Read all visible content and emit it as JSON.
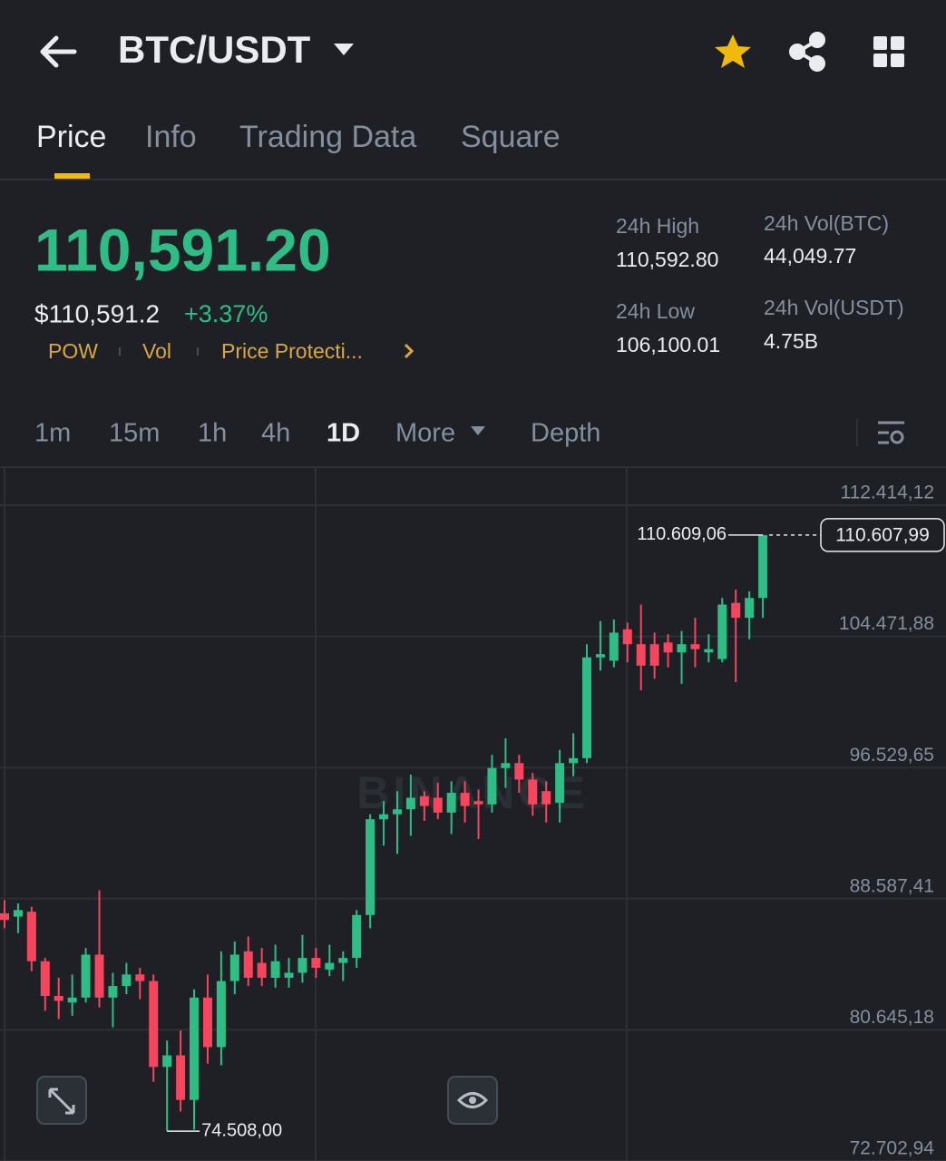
{
  "header": {
    "pair": "BTC/USDT"
  },
  "tabs": [
    "Price",
    "Info",
    "Trading Data",
    "Square"
  ],
  "ticker": {
    "price": "110,591.20",
    "usd_price": "$110,591.2",
    "change": "+3.37%",
    "tags": [
      "POW",
      "Vol",
      "Price Protecti..."
    ],
    "stats": [
      {
        "label": "24h High",
        "value": "110,592.80"
      },
      {
        "label": "24h Low",
        "value": "106,100.01"
      },
      {
        "label": "24h Vol(BTC)",
        "value": "44,049.77"
      },
      {
        "label": "24h Vol(USDT)",
        "value": "4.75B"
      }
    ]
  },
  "timeframes": [
    "1m",
    "15m",
    "1h",
    "4h",
    "1D"
  ],
  "more": "More",
  "depth": "Depth",
  "chart_data": {
    "type": "candlestick",
    "watermark": "BINANCE",
    "grid": true,
    "colors": {
      "up": "#2ebd85",
      "down": "#f6465d"
    },
    "ylim": [
      72702.94,
      114612
    ],
    "yticks": [
      {
        "value": 72702.94,
        "label": "72.702,94"
      },
      {
        "value": 80645.18,
        "label": "80.645,18"
      },
      {
        "value": 88587.41,
        "label": "88.587,41"
      },
      {
        "value": 96529.65,
        "label": "96.529,65"
      },
      {
        "value": 104471.88,
        "label": "104.471,88"
      },
      {
        "value": 112414.12,
        "label": "112.414,12"
      }
    ],
    "open": [
      87700,
      87500,
      87800,
      84800,
      82700,
      82300,
      82600,
      85200,
      82600,
      83300,
      84000,
      83600,
      78400,
      79100,
      76400,
      82600,
      79600,
      83600,
      85400,
      84700,
      83800,
      83800,
      84100,
      85000,
      84300,
      84700,
      85000,
      87600,
      93400,
      93700,
      94000,
      94800,
      94700,
      93800,
      95000,
      94500,
      94300,
      96500,
      96800,
      95800,
      95100,
      94400,
      96800,
      97100,
      103200,
      103000,
      104900,
      104000,
      104000,
      104100,
      103500,
      104000,
      103500,
      103100,
      106500,
      105600,
      106800
    ],
    "high": [
      88500,
      88300,
      88100,
      85000,
      83800,
      84000,
      85600,
      89100,
      84100,
      84700,
      84400,
      84000,
      80000,
      80600,
      83100,
      84000,
      85400,
      86000,
      86300,
      85600,
      85800,
      85000,
      86400,
      85600,
      85800,
      85400,
      87900,
      93700,
      94500,
      95100,
      96100,
      95100,
      95600,
      95700,
      95700,
      95200,
      97300,
      98300,
      97300,
      96200,
      95700,
      97600,
      98600,
      104000,
      105400,
      105500,
      105300,
      106400,
      104700,
      104600,
      104800,
      105600,
      104600,
      106800,
      107300,
      107200,
      110609.06
    ],
    "low": [
      86800,
      86500,
      84200,
      81800,
      81300,
      81500,
      82300,
      82000,
      80800,
      82800,
      82500,
      77500,
      74508,
      75700,
      74600,
      78600,
      78500,
      82800,
      83300,
      83300,
      83200,
      83200,
      83500,
      83800,
      83900,
      83600,
      84400,
      86800,
      91800,
      91300,
      92400,
      93300,
      93400,
      92500,
      93200,
      92200,
      93800,
      95300,
      95000,
      93600,
      93200,
      93200,
      96000,
      96800,
      102400,
      102600,
      102900,
      101200,
      101900,
      102600,
      101600,
      102600,
      102900,
      102900,
      101700,
      104300,
      105600
    ],
    "close": [
      87300,
      87900,
      84800,
      82700,
      82400,
      82600,
      85200,
      82600,
      83300,
      84000,
      83600,
      78400,
      79100,
      76400,
      82600,
      79600,
      83600,
      85200,
      83800,
      83800,
      84800,
      84100,
      85000,
      84400,
      84700,
      85000,
      87600,
      93400,
      93700,
      94000,
      94700,
      94200,
      93800,
      95000,
      94200,
      94300,
      96500,
      96800,
      95800,
      94300,
      94300,
      96800,
      97100,
      103200,
      103400,
      104700,
      104000,
      102700,
      102700,
      103500,
      104000,
      103700,
      103700,
      106400,
      105600,
      106800,
      110607.99
    ],
    "annotations": {
      "high": {
        "value": 110609.06,
        "label": "110.609,06"
      },
      "low": {
        "value": 74508,
        "label": "74.508,00"
      },
      "last": {
        "value": 110607.99,
        "label": "110.607,99"
      }
    }
  }
}
